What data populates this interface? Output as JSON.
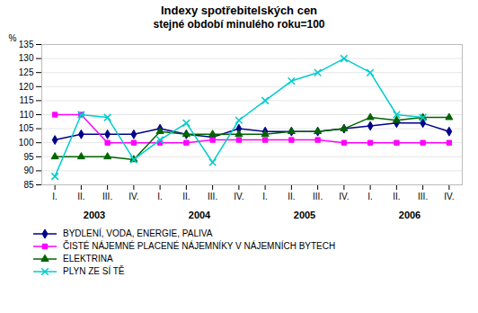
{
  "chart_data": {
    "type": "line",
    "title": "Indexy spotřebitelských cen",
    "subtitle": "stejné období minulého roku=100",
    "ylabel": "%",
    "categories": [
      "I.",
      "II.",
      "III.",
      "IV.",
      "I.",
      "II.",
      "III.",
      "IV.",
      "I.",
      "II.",
      "III.",
      "IV.",
      "I.",
      "II.",
      "III.",
      "IV."
    ],
    "annotations": [
      "2003",
      "2004",
      "2005",
      "2006"
    ],
    "series": [
      {
        "name": "BYDLENÍ, VODA, ENERGIE, PALIVA",
        "color": "#00008B",
        "marker": "diamond",
        "values": [
          101,
          103,
          103,
          103,
          105,
          103,
          102,
          105,
          104,
          104,
          104,
          105,
          106,
          107,
          107,
          104
        ]
      },
      {
        "name": "ČISTÉ NÁJEMNÉ PLACENÉ NÁJEMNÍKY V NÁJEMNÍCH BYTECH",
        "color": "#FF00FF",
        "marker": "square",
        "values": [
          110,
          110,
          100,
          100,
          100,
          100,
          101,
          101,
          101,
          101,
          101,
          100,
          100,
          100,
          100,
          100
        ]
      },
      {
        "name": "ELEKTRINA",
        "color": "#006400",
        "marker": "triangle",
        "values": [
          95,
          95,
          95,
          94,
          104,
          103,
          103,
          103,
          103,
          104,
          104,
          105,
          109,
          108,
          109,
          109
        ]
      },
      {
        "name": "PLYN ZE SÍ TĚ",
        "color": "#00CCCC",
        "marker": "x",
        "values": [
          88,
          110,
          109,
          94,
          101,
          107,
          93,
          108,
          115,
          122,
          125,
          130,
          125,
          110,
          109,
          null
        ]
      }
    ],
    "ylim": [
      85,
      135
    ],
    "yticks": [
      85,
      90,
      95,
      100,
      105,
      110,
      115,
      120,
      125,
      130,
      135
    ],
    "grid": true,
    "legend": "bottom"
  }
}
